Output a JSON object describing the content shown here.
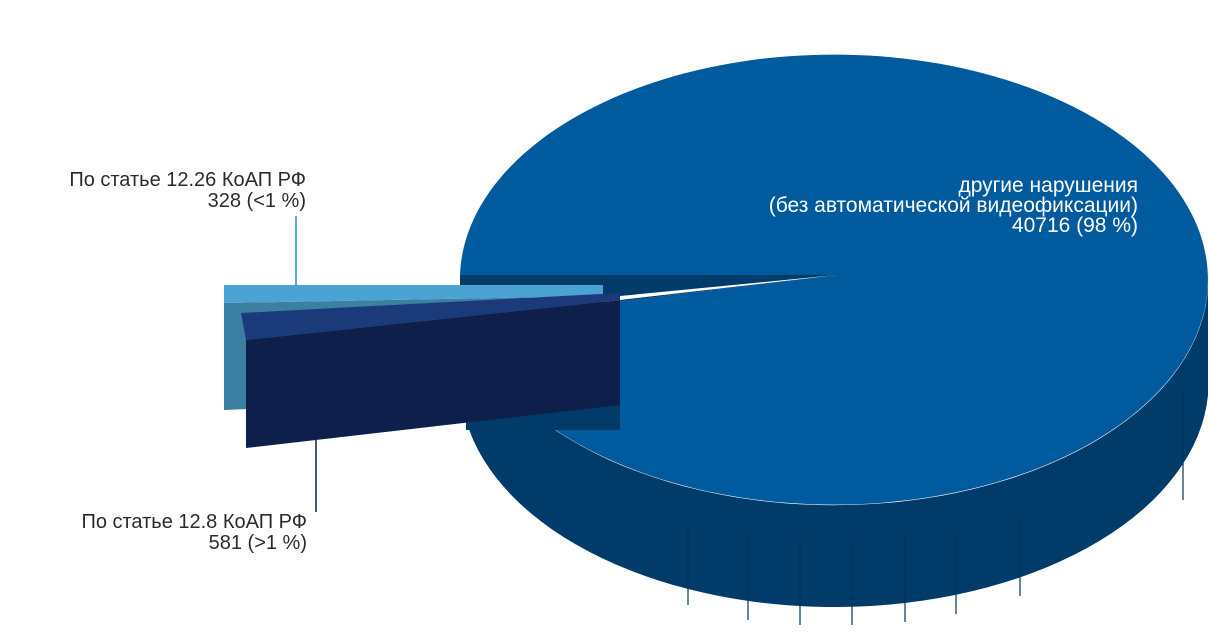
{
  "chart_data": {
    "type": "pie",
    "title": "",
    "slices": [
      {
        "name": "другие нарушения",
        "sublabel": "(без автоматической видеофиксации)",
        "value": 40716,
        "percent_label": "98 %",
        "value_label": "40716 (98 %)",
        "color": "#005a9e"
      },
      {
        "name": "По статье 12.26 КоАП РФ",
        "value": 328,
        "percent_label": "<1 %",
        "value_label": "328 (<1 %)",
        "color": "#4ba3d3"
      },
      {
        "name": "По статье 12.8 КоАП РФ",
        "value": 581,
        "percent_label": ">1 %",
        "value_label": "581 (>1 %)",
        "color": "#0f1f4b"
      }
    ]
  }
}
